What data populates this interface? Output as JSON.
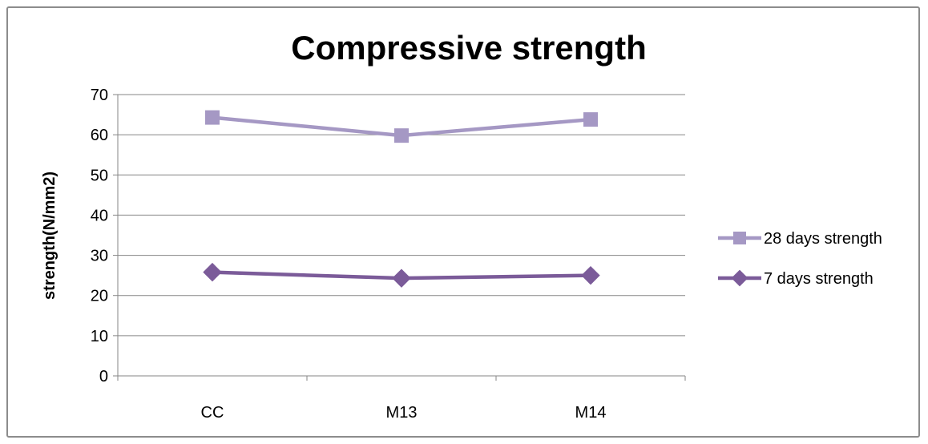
{
  "chart_data": {
    "type": "line",
    "title": "Compressive strength",
    "xlabel": "",
    "ylabel": "strength(N/mm2)",
    "categories": [
      "CC",
      "M13",
      "M14"
    ],
    "ylim": [
      0,
      70
    ],
    "yticks": [
      0,
      10,
      20,
      30,
      40,
      50,
      60,
      70
    ],
    "grid": "horizontal",
    "legend_position": "right",
    "series": [
      {
        "name": "28 days strength",
        "values": [
          64.3,
          59.8,
          63.8
        ],
        "color": "#a598c4",
        "marker": "square"
      },
      {
        "name": "7 days strength",
        "values": [
          25.8,
          24.3,
          25.0
        ],
        "color": "#7b5b99",
        "marker": "diamond"
      }
    ]
  }
}
